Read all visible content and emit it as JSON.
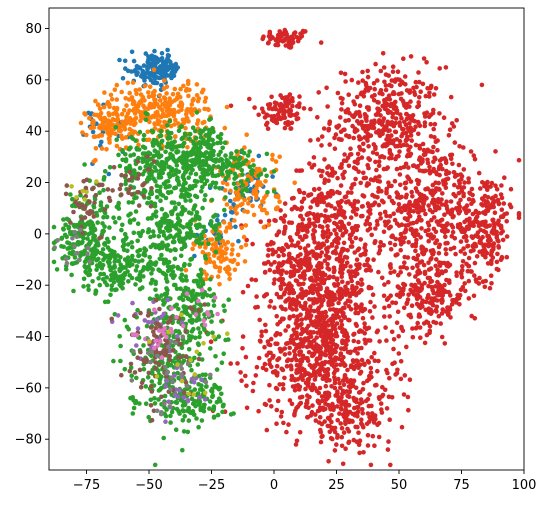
{
  "chart_data": {
    "type": "scatter",
    "title": "",
    "xlabel": "",
    "ylabel": "",
    "xlim": [
      -90,
      100
    ],
    "ylim": [
      -92,
      88
    ],
    "xticks": [
      -75,
      -50,
      -25,
      0,
      25,
      50,
      75,
      100
    ],
    "yticks": [
      -80,
      -60,
      -40,
      -20,
      0,
      20,
      40,
      60,
      80
    ],
    "xtick_labels": [
      "−75",
      "−50",
      "−25",
      "0",
      "25",
      "50",
      "75",
      "100"
    ],
    "ytick_labels": [
      "−80",
      "−60",
      "−40",
      "−20",
      "0",
      "20",
      "40",
      "60",
      "80"
    ],
    "grid": false,
    "legend": "none",
    "series": [
      {
        "color": "#d62728",
        "clusters": [
          {
            "cx": 5,
            "cy": 76,
            "sx": 5,
            "sy": 2,
            "n": 60
          },
          {
            "cx": 3,
            "cy": 48,
            "sx": 5,
            "sy": 4,
            "n": 90
          },
          {
            "cx": 45,
            "cy": 45,
            "sx": 11,
            "sy": 10,
            "n": 380
          },
          {
            "cx": 60,
            "cy": 10,
            "sx": 14,
            "sy": 14,
            "n": 550
          },
          {
            "cx": 85,
            "cy": 2,
            "sx": 5,
            "sy": 10,
            "n": 180
          },
          {
            "cx": 62,
            "cy": -24,
            "sx": 8,
            "sy": 7,
            "n": 200
          },
          {
            "cx": 22,
            "cy": 8,
            "sx": 8,
            "sy": 12,
            "n": 260
          },
          {
            "cx": 22,
            "cy": -18,
            "sx": 10,
            "sy": 10,
            "n": 300
          },
          {
            "cx": 18,
            "cy": -45,
            "sx": 14,
            "sy": 14,
            "n": 700
          },
          {
            "cx": 30,
            "cy": -70,
            "sx": 10,
            "sy": 7,
            "n": 180
          },
          {
            "cx": 5,
            "cy": -10,
            "sx": 6,
            "sy": 8,
            "n": 120
          }
        ]
      },
      {
        "color": "#1f77b4",
        "clusters": [
          {
            "cx": -47,
            "cy": 64,
            "sx": 5,
            "sy": 3,
            "n": 150
          },
          {
            "cx": -12,
            "cy": 18,
            "sx": 5,
            "sy": 5,
            "n": 50
          },
          {
            "cx": -22,
            "cy": 3,
            "sx": 4,
            "sy": 5,
            "n": 25
          },
          {
            "cx": -70,
            "cy": 40,
            "sx": 5,
            "sy": 6,
            "n": 20
          }
        ]
      },
      {
        "color": "#ff7f0e",
        "clusters": [
          {
            "cx": -45,
            "cy": 48,
            "sx": 10,
            "sy": 6,
            "n": 260
          },
          {
            "cx": -65,
            "cy": 42,
            "sx": 5,
            "sy": 5,
            "n": 110
          },
          {
            "cx": -10,
            "cy": 17,
            "sx": 6,
            "sy": 8,
            "n": 120
          },
          {
            "cx": -22,
            "cy": -8,
            "sx": 5,
            "sy": 5,
            "n": 90
          }
        ]
      },
      {
        "color": "#2ca02c",
        "clusters": [
          {
            "cx": -45,
            "cy": 25,
            "sx": 10,
            "sy": 8,
            "n": 300
          },
          {
            "cx": -30,
            "cy": 32,
            "sx": 6,
            "sy": 5,
            "n": 150
          },
          {
            "cx": -75,
            "cy": 0,
            "sx": 6,
            "sy": 8,
            "n": 200
          },
          {
            "cx": -65,
            "cy": -13,
            "sx": 6,
            "sy": 5,
            "n": 120
          },
          {
            "cx": -48,
            "cy": -8,
            "sx": 9,
            "sy": 10,
            "n": 160
          },
          {
            "cx": -35,
            "cy": 5,
            "sx": 7,
            "sy": 9,
            "n": 150
          },
          {
            "cx": -33,
            "cy": -28,
            "sx": 6,
            "sy": 8,
            "n": 150
          },
          {
            "cx": -42,
            "cy": -50,
            "sx": 8,
            "sy": 12,
            "n": 260
          },
          {
            "cx": -30,
            "cy": -65,
            "sx": 6,
            "sy": 4,
            "n": 80
          },
          {
            "cx": -15,
            "cy": 25,
            "sx": 7,
            "sy": 5,
            "n": 70
          }
        ]
      },
      {
        "color": "#9467bd",
        "clusters": [
          {
            "cx": -48,
            "cy": -38,
            "sx": 6,
            "sy": 8,
            "n": 35
          },
          {
            "cx": -38,
            "cy": -62,
            "sx": 5,
            "sy": 4,
            "n": 20
          }
        ]
      },
      {
        "color": "#8c564b",
        "clusters": [
          {
            "cx": -45,
            "cy": -45,
            "sx": 8,
            "sy": 10,
            "n": 90
          },
          {
            "cx": -75,
            "cy": 12,
            "sx": 5,
            "sy": 6,
            "n": 40
          },
          {
            "cx": -55,
            "cy": 20,
            "sx": 5,
            "sy": 5,
            "n": 30
          }
        ]
      },
      {
        "color": "#e377c2",
        "clusters": [
          {
            "cx": -45,
            "cy": -40,
            "sx": 6,
            "sy": 6,
            "n": 20
          },
          {
            "cx": -28,
            "cy": -30,
            "sx": 4,
            "sy": 4,
            "n": 10
          }
        ]
      },
      {
        "color": "#7f7f7f",
        "clusters": [
          {
            "cx": -40,
            "cy": -55,
            "sx": 8,
            "sy": 8,
            "n": 30
          },
          {
            "cx": -80,
            "cy": -5,
            "sx": 4,
            "sy": 5,
            "n": 15
          }
        ]
      },
      {
        "color": "#bcbd22",
        "clusters": [
          {
            "cx": -35,
            "cy": -50,
            "sx": 8,
            "sy": 10,
            "n": 15
          },
          {
            "cx": -75,
            "cy": 15,
            "sx": 3,
            "sy": 3,
            "n": 6
          }
        ]
      }
    ]
  }
}
